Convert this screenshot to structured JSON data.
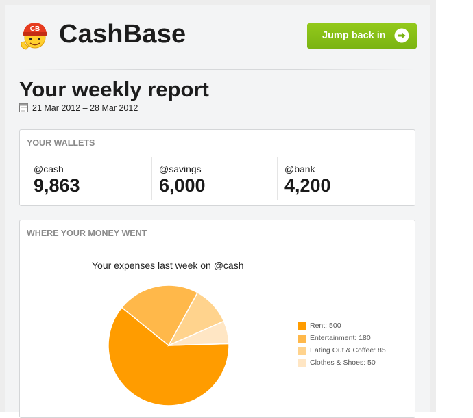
{
  "header": {
    "brand": "CashBase",
    "logo_text": "CB",
    "jump_button_label": "Jump back in",
    "jump_button_icon": "arrow-right-circle-icon",
    "accent_color": "#85bf17"
  },
  "report": {
    "title": "Your weekly report",
    "date_range": "21 Mar 2012 – 28 Mar 2012",
    "date_icon": "calendar-icon"
  },
  "wallets": {
    "heading": "YOUR WALLETS",
    "items": [
      {
        "name": "@cash",
        "value": "9,863"
      },
      {
        "name": "@savings",
        "value": "6,000"
      },
      {
        "name": "@bank",
        "value": "4,200"
      }
    ]
  },
  "spending": {
    "heading": "WHERE YOUR MONEY WENT",
    "legend": [
      "Rent: 500",
      "Entertainment: 180",
      "Eating Out & Coffee: 85",
      "Clothes & Shoes: 50"
    ]
  },
  "chart_data": {
    "type": "pie",
    "title": "Your expenses last week on @cash",
    "categories": [
      "Rent",
      "Entertainment",
      "Eating Out & Coffee",
      "Clothes & Shoes"
    ],
    "values": [
      500,
      180,
      85,
      50
    ],
    "colors": [
      "#ff9c00",
      "#ffb84a",
      "#ffd38d",
      "#ffe6c4"
    ],
    "legend_position": "right"
  }
}
